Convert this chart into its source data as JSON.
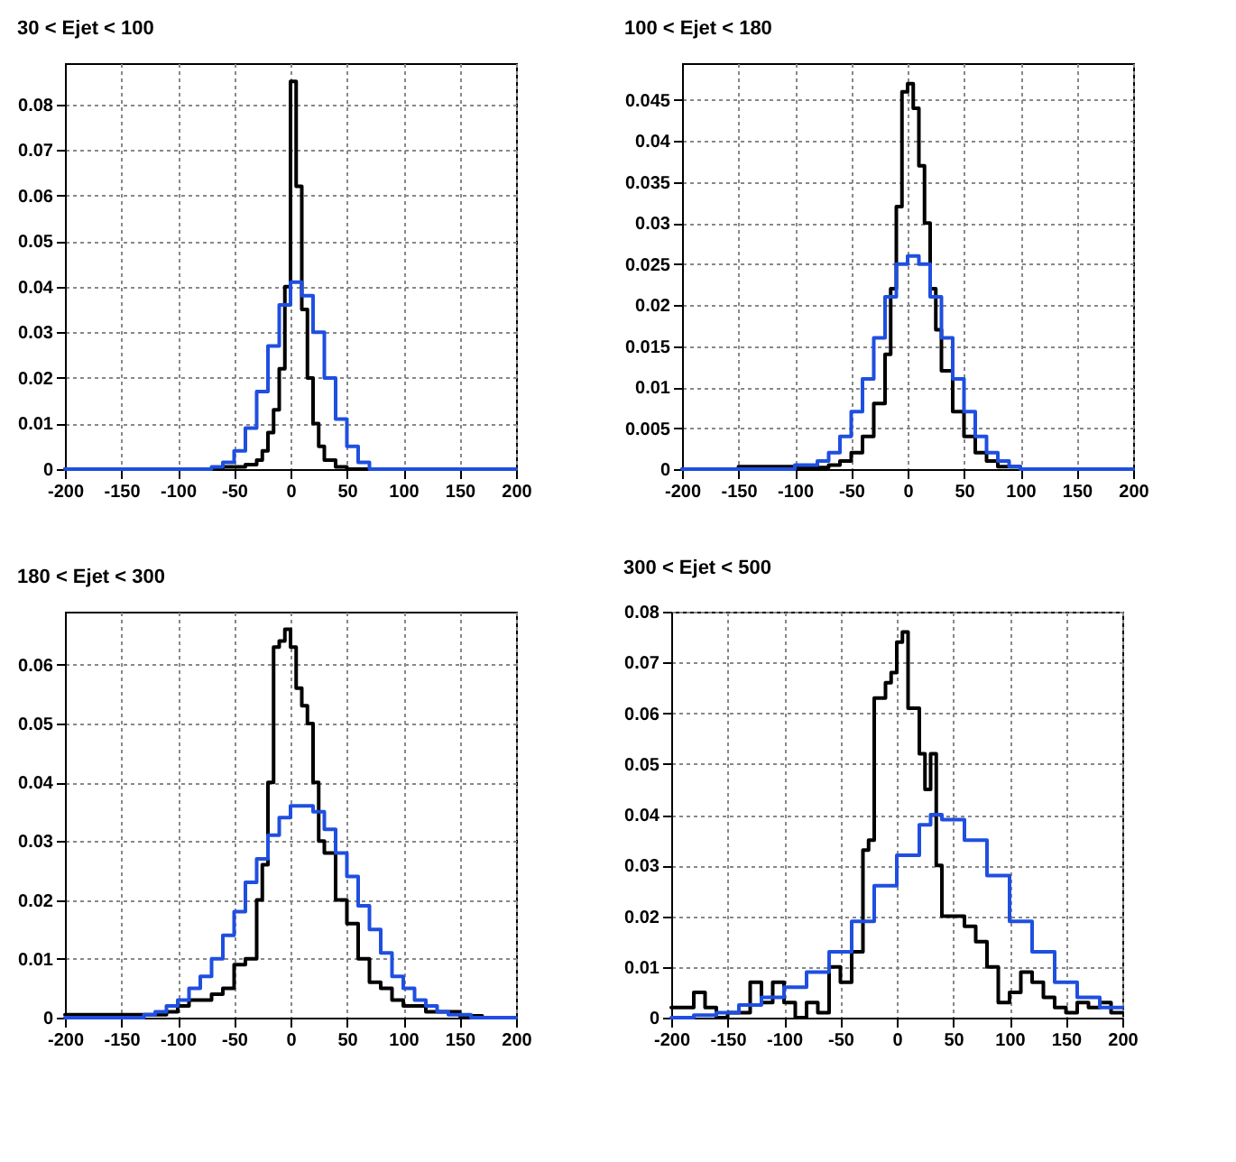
{
  "chart_data": [
    {
      "type": "step",
      "title": "30 < Ejet < 100",
      "xlim": [
        -200,
        200
      ],
      "xticks": [
        -200,
        -150,
        -100,
        -50,
        0,
        50,
        100,
        150,
        200
      ],
      "ylim": [
        0,
        0.089
      ],
      "yticks": [
        0,
        0.01,
        0.02,
        0.03,
        0.04,
        0.05,
        0.06,
        0.07,
        0.08
      ],
      "grid": true,
      "series": [
        {
          "color": "#000000",
          "x": [
            -200,
            -60,
            -40,
            -30,
            -25,
            -20,
            -15,
            -10,
            -5,
            0,
            5,
            10,
            15,
            20,
            25,
            30,
            40,
            50,
            200
          ],
          "values": [
            0,
            0.0005,
            0.001,
            0.002,
            0.004,
            0.008,
            0.013,
            0.022,
            0.04,
            0.085,
            0.062,
            0.035,
            0.02,
            0.01,
            0.005,
            0.002,
            0.0005,
            0,
            0
          ]
        },
        {
          "color": "#1f4fe0",
          "x": [
            -200,
            -70,
            -60,
            -50,
            -40,
            -30,
            -20,
            -10,
            0,
            10,
            20,
            30,
            40,
            50,
            60,
            70,
            200
          ],
          "values": [
            0,
            0.0005,
            0.0015,
            0.004,
            0.009,
            0.017,
            0.027,
            0.036,
            0.041,
            0.038,
            0.03,
            0.02,
            0.011,
            0.005,
            0.0015,
            0,
            0
          ]
        }
      ]
    },
    {
      "type": "step",
      "title": "100 < Ejet < 180",
      "xlim": [
        -200,
        200
      ],
      "xticks": [
        -200,
        -150,
        -100,
        -50,
        0,
        50,
        100,
        150,
        200
      ],
      "ylim": [
        0,
        0.0495
      ],
      "yticks": [
        0,
        0.005,
        0.01,
        0.015,
        0.02,
        0.025,
        0.03,
        0.035,
        0.04,
        0.045
      ],
      "grid": true,
      "series": [
        {
          "color": "#000000",
          "x": [
            -200,
            -150,
            -100,
            -70,
            -60,
            -50,
            -40,
            -30,
            -20,
            -15,
            -10,
            -5,
            0,
            5,
            10,
            15,
            20,
            25,
            30,
            40,
            50,
            60,
            70,
            80,
            100,
            200
          ],
          "values": [
            0,
            0.0003,
            0.0002,
            0.0005,
            0.001,
            0.002,
            0.004,
            0.008,
            0.014,
            0.022,
            0.032,
            0.046,
            0.047,
            0.044,
            0.037,
            0.03,
            0.022,
            0.017,
            0.012,
            0.007,
            0.004,
            0.002,
            0.001,
            0.0003,
            0,
            0
          ]
        },
        {
          "color": "#1f4fe0",
          "x": [
            -200,
            -100,
            -80,
            -70,
            -60,
            -50,
            -40,
            -30,
            -20,
            -10,
            0,
            10,
            20,
            30,
            40,
            50,
            60,
            70,
            80,
            90,
            100,
            200
          ],
          "values": [
            0,
            0.0005,
            0.001,
            0.002,
            0.004,
            0.007,
            0.011,
            0.016,
            0.021,
            0.025,
            0.026,
            0.025,
            0.021,
            0.016,
            0.011,
            0.007,
            0.004,
            0.002,
            0.001,
            0.0003,
            0,
            0
          ]
        }
      ]
    },
    {
      "type": "step",
      "title": "180 < Ejet < 300",
      "xlim": [
        -200,
        200
      ],
      "xticks": [
        -200,
        -150,
        -100,
        -50,
        0,
        50,
        100,
        150,
        200
      ],
      "ylim": [
        0,
        0.069
      ],
      "yticks": [
        0,
        0.01,
        0.02,
        0.03,
        0.04,
        0.05,
        0.06
      ],
      "grid": true,
      "series": [
        {
          "color": "#000000",
          "x": [
            -200,
            -150,
            -110,
            -100,
            -90,
            -80,
            -70,
            -60,
            -50,
            -40,
            -30,
            -25,
            -20,
            -15,
            -10,
            -5,
            0,
            5,
            10,
            15,
            20,
            25,
            30,
            40,
            50,
            60,
            70,
            80,
            90,
            100,
            120,
            150,
            170,
            200
          ],
          "values": [
            0.0005,
            0.0005,
            0.001,
            0.002,
            0.003,
            0.003,
            0.004,
            0.005,
            0.009,
            0.01,
            0.02,
            0.026,
            0.04,
            0.063,
            0.064,
            0.066,
            0.063,
            0.056,
            0.053,
            0.05,
            0.04,
            0.03,
            0.028,
            0.02,
            0.016,
            0.01,
            0.006,
            0.005,
            0.003,
            0.002,
            0.001,
            0.0003,
            0,
            0
          ]
        },
        {
          "color": "#1f4fe0",
          "x": [
            -200,
            -130,
            -120,
            -110,
            -100,
            -90,
            -80,
            -70,
            -60,
            -50,
            -40,
            -30,
            -20,
            -10,
            0,
            10,
            20,
            30,
            40,
            50,
            60,
            70,
            80,
            90,
            100,
            110,
            120,
            130,
            140,
            160,
            200
          ],
          "values": [
            0,
            0.0005,
            0.001,
            0.002,
            0.003,
            0.005,
            0.007,
            0.01,
            0.014,
            0.018,
            0.023,
            0.027,
            0.031,
            0.034,
            0.036,
            0.036,
            0.035,
            0.032,
            0.028,
            0.024,
            0.019,
            0.015,
            0.011,
            0.007,
            0.005,
            0.003,
            0.002,
            0.001,
            0.0005,
            0,
            0
          ]
        }
      ]
    },
    {
      "type": "step",
      "title": "300 < Ejet < 500",
      "xlim": [
        -200,
        200
      ],
      "xticks": [
        -200,
        -150,
        -100,
        -50,
        0,
        50,
        100,
        150,
        200
      ],
      "ylim": [
        0,
        0.08
      ],
      "yticks": [
        0,
        0.01,
        0.02,
        0.03,
        0.04,
        0.05,
        0.06,
        0.07,
        0.08
      ],
      "grid": true,
      "series": [
        {
          "color": "#000000",
          "x": [
            -200,
            -180,
            -170,
            -160,
            -150,
            -130,
            -120,
            -110,
            -100,
            -90,
            -80,
            -70,
            -60,
            -50,
            -40,
            -30,
            -25,
            -20,
            -10,
            -5,
            0,
            5,
            10,
            20,
            25,
            30,
            35,
            40,
            60,
            70,
            80,
            90,
            100,
            110,
            120,
            130,
            140,
            150,
            160,
            170,
            180,
            190,
            200
          ],
          "values": [
            0.002,
            0.005,
            0.002,
            0,
            0.001,
            0.007,
            0.003,
            0.007,
            0.003,
            0,
            0.003,
            0.001,
            0.01,
            0.007,
            0.013,
            0.033,
            0.035,
            0.063,
            0.066,
            0.068,
            0.074,
            0.076,
            0.061,
            0.052,
            0.045,
            0.052,
            0.03,
            0.02,
            0.018,
            0.015,
            0.01,
            0.003,
            0.005,
            0.009,
            0.007,
            0.004,
            0.002,
            0.001,
            0.003,
            0.002,
            0.003,
            0.001,
            0.001
          ]
        },
        {
          "color": "#1f4fe0",
          "x": [
            -200,
            -180,
            -160,
            -140,
            -120,
            -100,
            -80,
            -60,
            -40,
            -20,
            0,
            20,
            30,
            40,
            60,
            80,
            100,
            120,
            140,
            160,
            180,
            200
          ],
          "values": [
            0,
            0.0005,
            0.001,
            0.0025,
            0.004,
            0.006,
            0.009,
            0.013,
            0.019,
            0.026,
            0.032,
            0.038,
            0.04,
            0.039,
            0.035,
            0.028,
            0.019,
            0.013,
            0.007,
            0.004,
            0.002,
            0.002
          ]
        }
      ]
    }
  ]
}
